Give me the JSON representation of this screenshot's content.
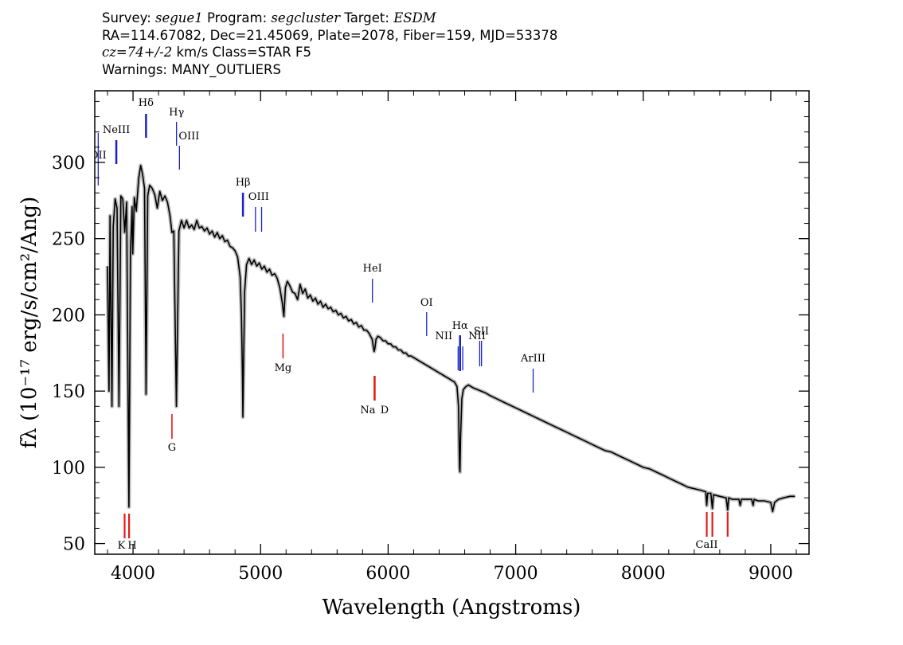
{
  "header": {
    "survey_label": "Survey:",
    "survey": "segue1",
    "program_label": "Program:",
    "program": "segcluster",
    "target_label": "Target:",
    "target": "ESDM",
    "line2": "RA=114.67082, Dec=21.45069, Plate=2078, Fiber=159, MJD=53378",
    "cz_value": "cz=74+/-2",
    "cz_rest": " km/s Class=STAR F5",
    "warnings": "Warnings: MANY_OUTLIERS"
  },
  "chart_data": {
    "type": "line",
    "xlabel": "Wavelength (Angstroms)",
    "ylabel": "fλ (10⁻¹⁷ erg/s/cm²/Ang)",
    "xlim": [
      3700,
      9300
    ],
    "ylim": [
      43,
      347
    ],
    "x_ticks": [
      4000,
      5000,
      6000,
      7000,
      8000,
      9000
    ],
    "y_ticks": [
      50,
      100,
      150,
      200,
      250,
      300
    ],
    "grid": false,
    "series": [
      {
        "color": "#000000",
        "points": [
          [
            3800,
            232
          ],
          [
            3812,
            150
          ],
          [
            3820,
            265
          ],
          [
            3835,
            140
          ],
          [
            3845,
            258
          ],
          [
            3860,
            276
          ],
          [
            3875,
            270
          ],
          [
            3890,
            140
          ],
          [
            3905,
            278
          ],
          [
            3920,
            276
          ],
          [
            3935,
            254
          ],
          [
            3950,
            274
          ],
          [
            3968,
            74
          ],
          [
            3980,
            240
          ],
          [
            3993,
            271
          ],
          [
            3998,
            240
          ],
          [
            4010,
            277
          ],
          [
            4025,
            268
          ],
          [
            4045,
            290
          ],
          [
            4060,
            298
          ],
          [
            4075,
            292
          ],
          [
            4090,
            283
          ],
          [
            4102,
            148
          ],
          [
            4115,
            278
          ],
          [
            4130,
            285
          ],
          [
            4150,
            283
          ],
          [
            4170,
            279
          ],
          [
            4190,
            270
          ],
          [
            4210,
            281
          ],
          [
            4230,
            275
          ],
          [
            4250,
            278
          ],
          [
            4270,
            274
          ],
          [
            4290,
            265
          ],
          [
            4305,
            254
          ],
          [
            4320,
            255
          ],
          [
            4340,
            140
          ],
          [
            4360,
            255
          ],
          [
            4380,
            262
          ],
          [
            4400,
            257
          ],
          [
            4420,
            262
          ],
          [
            4440,
            257
          ],
          [
            4460,
            259
          ],
          [
            4480,
            256
          ],
          [
            4500,
            262
          ],
          [
            4520,
            257
          ],
          [
            4540,
            258
          ],
          [
            4560,
            255
          ],
          [
            4580,
            257
          ],
          [
            4600,
            253
          ],
          [
            4620,
            255
          ],
          [
            4640,
            251
          ],
          [
            4660,
            254
          ],
          [
            4680,
            250
          ],
          [
            4700,
            252
          ],
          [
            4720,
            248
          ],
          [
            4740,
            249
          ],
          [
            4760,
            245
          ],
          [
            4780,
            244
          ],
          [
            4800,
            242
          ],
          [
            4820,
            238
          ],
          [
            4840,
            225
          ],
          [
            4850,
            200
          ],
          [
            4858,
            160
          ],
          [
            4861,
            133
          ],
          [
            4866,
            165
          ],
          [
            4875,
            215
          ],
          [
            4890,
            233
          ],
          [
            4910,
            237
          ],
          [
            4930,
            233
          ],
          [
            4950,
            236
          ],
          [
            4970,
            232
          ],
          [
            4990,
            234
          ],
          [
            5010,
            230
          ],
          [
            5030,
            232
          ],
          [
            5050,
            228
          ],
          [
            5070,
            230
          ],
          [
            5090,
            226
          ],
          [
            5110,
            227
          ],
          [
            5130,
            224
          ],
          [
            5150,
            218
          ],
          [
            5170,
            208
          ],
          [
            5183,
            199
          ],
          [
            5195,
            218
          ],
          [
            5210,
            222
          ],
          [
            5230,
            219
          ],
          [
            5250,
            215
          ],
          [
            5270,
            214
          ],
          [
            5290,
            210
          ],
          [
            5310,
            220
          ],
          [
            5330,
            214
          ],
          [
            5350,
            217
          ],
          [
            5370,
            211
          ],
          [
            5390,
            213
          ],
          [
            5410,
            209
          ],
          [
            5430,
            211
          ],
          [
            5450,
            207
          ],
          [
            5470,
            209
          ],
          [
            5490,
            205
          ],
          [
            5510,
            207
          ],
          [
            5530,
            204
          ],
          [
            5550,
            205
          ],
          [
            5570,
            202
          ],
          [
            5590,
            203
          ],
          [
            5610,
            200
          ],
          [
            5630,
            201
          ],
          [
            5650,
            198
          ],
          [
            5670,
            199
          ],
          [
            5690,
            196
          ],
          [
            5710,
            197
          ],
          [
            5730,
            194
          ],
          [
            5750,
            195
          ],
          [
            5770,
            192
          ],
          [
            5790,
            193
          ],
          [
            5810,
            190
          ],
          [
            5830,
            190
          ],
          [
            5850,
            188
          ],
          [
            5875,
            184
          ],
          [
            5890,
            176
          ],
          [
            5896,
            178
          ],
          [
            5905,
            184
          ],
          [
            5920,
            186
          ],
          [
            5940,
            185
          ],
          [
            5960,
            183
          ],
          [
            5980,
            183
          ],
          [
            6000,
            181
          ],
          [
            6020,
            181
          ],
          [
            6040,
            179
          ],
          [
            6060,
            179
          ],
          [
            6080,
            177
          ],
          [
            6100,
            177
          ],
          [
            6120,
            175
          ],
          [
            6140,
            175
          ],
          [
            6160,
            173
          ],
          [
            6180,
            173
          ],
          [
            6200,
            172
          ],
          [
            6220,
            171
          ],
          [
            6240,
            170
          ],
          [
            6260,
            169
          ],
          [
            6280,
            168
          ],
          [
            6300,
            167
          ],
          [
            6320,
            166
          ],
          [
            6340,
            165
          ],
          [
            6360,
            164
          ],
          [
            6380,
            163
          ],
          [
            6400,
            162
          ],
          [
            6420,
            161
          ],
          [
            6440,
            160
          ],
          [
            6460,
            159
          ],
          [
            6480,
            158
          ],
          [
            6500,
            157
          ],
          [
            6520,
            156
          ],
          [
            6540,
            153
          ],
          [
            6552,
            140
          ],
          [
            6560,
            100
          ],
          [
            6563,
            97
          ],
          [
            6568,
            120
          ],
          [
            6578,
            145
          ],
          [
            6590,
            151
          ],
          [
            6610,
            153
          ],
          [
            6630,
            154
          ],
          [
            6650,
            153
          ],
          [
            6670,
            152
          ],
          [
            6700,
            151
          ],
          [
            6730,
            150
          ],
          [
            6760,
            149
          ],
          [
            6800,
            147
          ],
          [
            6850,
            145
          ],
          [
            6900,
            143
          ],
          [
            6950,
            141
          ],
          [
            7000,
            139
          ],
          [
            7050,
            137
          ],
          [
            7100,
            135
          ],
          [
            7150,
            133
          ],
          [
            7200,
            131
          ],
          [
            7250,
            129
          ],
          [
            7300,
            127
          ],
          [
            7350,
            125
          ],
          [
            7400,
            123
          ],
          [
            7450,
            121
          ],
          [
            7500,
            119
          ],
          [
            7550,
            117
          ],
          [
            7600,
            115
          ],
          [
            7650,
            113
          ],
          [
            7700,
            111
          ],
          [
            7750,
            110
          ],
          [
            7800,
            108
          ],
          [
            7850,
            106
          ],
          [
            7900,
            104
          ],
          [
            7950,
            102
          ],
          [
            8000,
            100
          ],
          [
            8050,
            99
          ],
          [
            8100,
            97
          ],
          [
            8150,
            95
          ],
          [
            8200,
            93
          ],
          [
            8250,
            91
          ],
          [
            8300,
            89
          ],
          [
            8350,
            87
          ],
          [
            8400,
            86
          ],
          [
            8450,
            85
          ],
          [
            8490,
            84
          ],
          [
            8498,
            75
          ],
          [
            8505,
            83
          ],
          [
            8530,
            83
          ],
          [
            8542,
            73
          ],
          [
            8550,
            82
          ],
          [
            8600,
            81
          ],
          [
            8650,
            80
          ],
          [
            8662,
            72
          ],
          [
            8670,
            80
          ],
          [
            8700,
            79
          ],
          [
            8750,
            79
          ],
          [
            8760,
            75
          ],
          [
            8770,
            79
          ],
          [
            8800,
            79
          ],
          [
            8850,
            79
          ],
          [
            8862,
            75
          ],
          [
            8870,
            79
          ],
          [
            8900,
            78
          ],
          [
            8950,
            78
          ],
          [
            9000,
            77
          ],
          [
            9015,
            71
          ],
          [
            9030,
            77
          ],
          [
            9060,
            79
          ],
          [
            9100,
            80
          ],
          [
            9150,
            81
          ],
          [
            9190,
            81
          ]
        ]
      }
    ],
    "line_markers": {
      "blue": [
        {
          "label": "OII",
          "x": 3727
        },
        {
          "label": "NeIII",
          "x": 3869
        },
        {
          "label": "Hδ",
          "x": 4102
        },
        {
          "label": "Hγ",
          "x": 4341
        },
        {
          "label": "OIII",
          "x": 4364
        },
        {
          "label": "Hβ",
          "x": 4862
        },
        {
          "label": "OIII",
          "x": 4960
        },
        {
          "label": "OIII",
          "x": 5008
        },
        {
          "label": "HeI",
          "x": 5877
        },
        {
          "label": "OI",
          "x": 6302
        },
        {
          "label": "NII",
          "x": 6549
        },
        {
          "label": "Hα",
          "x": 6564
        },
        {
          "label": "NII",
          "x": 6585
        },
        {
          "label": "SII",
          "x": 6718
        },
        {
          "label": "SII",
          "x": 6732
        },
        {
          "label": "ArIII",
          "x": 7137
        }
      ],
      "red": [
        {
          "label": "K",
          "x": 3934
        },
        {
          "label": "H",
          "x": 3969
        },
        {
          "label": "G",
          "x": 4305
        },
        {
          "label": "Mg",
          "x": 5176
        },
        {
          "label": "Na",
          "x": 5891
        },
        {
          "label": "D",
          "x": 5897
        },
        {
          "label": "CaII",
          "x": 8498
        },
        {
          "label": "CaII",
          "x": 8542
        },
        {
          "label": "CaII",
          "x": 8662
        }
      ]
    }
  }
}
